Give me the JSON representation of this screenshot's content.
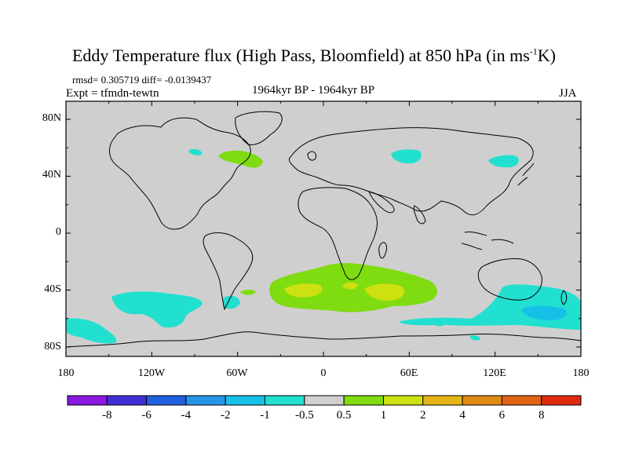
{
  "title": {
    "main": "Eddy Temperature flux (High Pass, Bloomfield) at 850 hPa (in ms",
    "sup": "-1",
    "end": "K)"
  },
  "stats_line": "rmsd= 0.305719 diff= -0.0139437",
  "expt_line": "Expt = tfmdn-tewtn",
  "period_line": "1964kyr BP - 1964kyr BP",
  "season": "JJA",
  "lat_labels": [
    "80N",
    "40N",
    "0",
    "40S",
    "80S"
  ],
  "lon_labels": [
    "180",
    "120W",
    "60W",
    "0",
    "60E",
    "120E",
    "180"
  ],
  "colorbar": {
    "labels": [
      "-8",
      "-6",
      "-4",
      "-2",
      "-1",
      "-0.5",
      "0.5",
      "1",
      "2",
      "4",
      "6",
      "8"
    ],
    "colors": [
      "#8a18e0",
      "#3f2fd6",
      "#1f5fe0",
      "#2894e6",
      "#17c0e6",
      "#22e0d0",
      "#cfcfcf",
      "#7fdc10",
      "#cde010",
      "#e6b414",
      "#e08a14",
      "#e06414",
      "#e02a10"
    ]
  },
  "colors": {
    "ocean_background": "#cfcfcf",
    "positive_flux": "#7fdc10",
    "positive_flux_strong": "#cde010",
    "negative_flux": "#22e0d0",
    "negative_flux_strong": "#17c0e6"
  }
}
